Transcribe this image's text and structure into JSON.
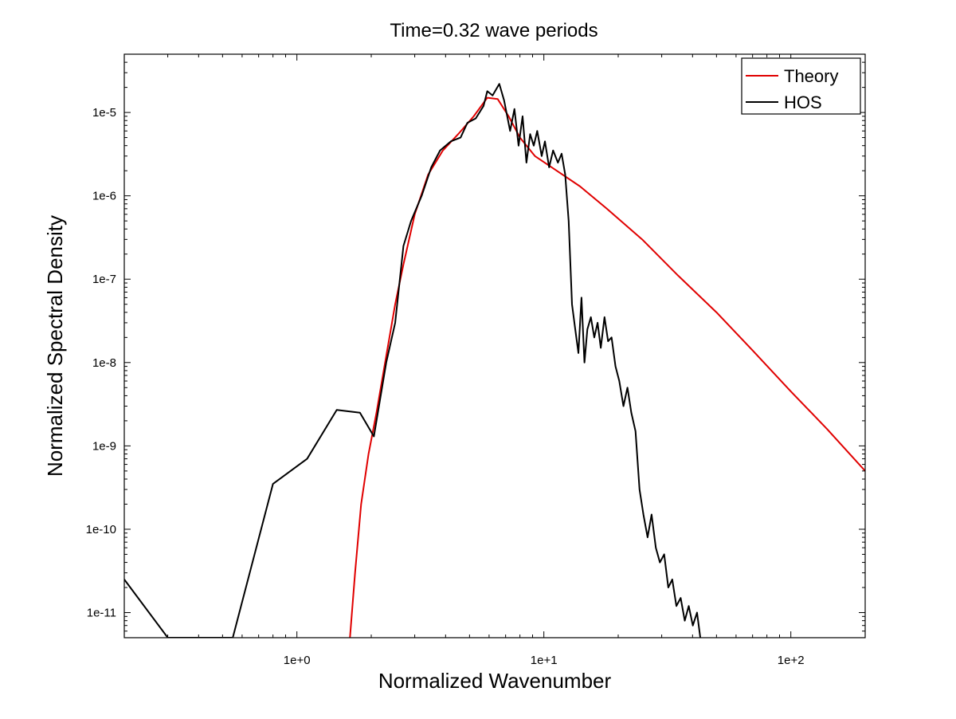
{
  "chart_data": {
    "type": "line",
    "title": "Time=0.32 wave periods",
    "xlabel": "Normalized Wavenumber",
    "ylabel": "Normalized Spectral Density",
    "xscale": "log",
    "yscale": "log",
    "xlim": [
      0.2,
      200
    ],
    "ylim": [
      5e-12,
      5e-05
    ],
    "grid": false,
    "legend_position": "top-right",
    "x_ticks": [
      {
        "value": 1,
        "label": "1e+0"
      },
      {
        "value": 10,
        "label": "1e+1"
      },
      {
        "value": 100,
        "label": "1e+2"
      }
    ],
    "y_ticks": [
      {
        "value": 1e-11,
        "label": "1e-11"
      },
      {
        "value": 1e-10,
        "label": "1e-10"
      },
      {
        "value": 1e-09,
        "label": "1e-9"
      },
      {
        "value": 1e-08,
        "label": "1e-8"
      },
      {
        "value": 1e-07,
        "label": "1e-7"
      },
      {
        "value": 1e-06,
        "label": "1e-6"
      },
      {
        "value": 1e-05,
        "label": "1e-5"
      }
    ],
    "series": [
      {
        "name": "Theory",
        "color": "#e00000",
        "x": [
          1.64,
          1.72,
          1.82,
          1.95,
          2.1,
          2.3,
          2.5,
          2.7,
          3.0,
          3.4,
          3.9,
          4.5,
          5.2,
          5.9,
          6.5,
          7.2,
          8.0,
          9.2,
          11.0,
          14.0,
          18.0,
          25.0,
          35.0,
          50.0,
          70.0,
          100.0,
          140.0,
          200.0
        ],
        "values": [
          5e-12,
          3e-11,
          2e-10,
          8e-10,
          2.5e-09,
          1.2e-08,
          5e-08,
          1.5e-07,
          6e-07,
          1.8e-06,
          3.5e-06,
          5.5e-06,
          9e-06,
          1.5e-05,
          1.45e-05,
          9e-06,
          5e-06,
          3e-06,
          2.1e-06,
          1.3e-06,
          7e-07,
          3e-07,
          1.1e-07,
          4e-08,
          1.4e-08,
          4.5e-09,
          1.6e-09,
          5e-10
        ]
      },
      {
        "name": "HOS",
        "color": "#000000",
        "x": [
          0.2,
          0.3,
          0.55,
          0.8,
          1.1,
          1.45,
          1.8,
          2.05,
          2.3,
          2.5,
          2.7,
          2.9,
          3.2,
          3.5,
          3.8,
          4.2,
          4.6,
          4.9,
          5.3,
          5.7,
          5.9,
          6.2,
          6.6,
          6.9,
          7.3,
          7.6,
          7.9,
          8.2,
          8.5,
          8.8,
          9.1,
          9.4,
          9.8,
          10.1,
          10.5,
          10.9,
          11.4,
          11.8,
          12.2,
          12.6,
          13.0,
          13.4,
          13.8,
          14.2,
          14.6,
          15.0,
          15.5,
          16.0,
          16.5,
          17.0,
          17.6,
          18.2,
          18.8,
          19.5,
          20.2,
          21.0,
          21.8,
          22.6,
          23.5,
          24.4,
          25.3,
          26.3,
          27.3,
          28.4,
          29.5,
          30.7,
          31.9,
          33.1,
          34.4,
          35.8,
          37.2,
          38.6,
          40.1,
          41.7,
          43.0
        ],
        "values": [
          2.5e-11,
          5e-12,
          5e-12,
          3.5e-10,
          7e-10,
          2.7e-09,
          2.5e-09,
          1.3e-09,
          1e-08,
          3e-08,
          2.5e-07,
          5e-07,
          1e-06,
          2.2e-06,
          3.5e-06,
          4.5e-06,
          5e-06,
          7.5e-06,
          8.5e-06,
          1.2e-05,
          1.8e-05,
          1.6e-05,
          2.2e-05,
          1.4e-05,
          6e-06,
          1.1e-05,
          4e-06,
          9e-06,
          2.5e-06,
          5.5e-06,
          4e-06,
          6e-06,
          3e-06,
          4.5e-06,
          2.2e-06,
          3.5e-06,
          2.5e-06,
          3.2e-06,
          1.8e-06,
          5e-07,
          5e-08,
          2.5e-08,
          1.3e-08,
          6e-08,
          1e-08,
          2.5e-08,
          3.5e-08,
          2e-08,
          3e-08,
          1.5e-08,
          3.5e-08,
          1.8e-08,
          2e-08,
          9e-09,
          6e-09,
          3e-09,
          5e-09,
          2.5e-09,
          1.5e-09,
          3e-10,
          1.5e-10,
          8e-11,
          1.5e-10,
          6e-11,
          4e-11,
          5e-11,
          2e-11,
          2.5e-11,
          1.2e-11,
          1.5e-11,
          8e-12,
          1.2e-11,
          7e-12,
          1e-11,
          5e-12
        ]
      }
    ]
  }
}
